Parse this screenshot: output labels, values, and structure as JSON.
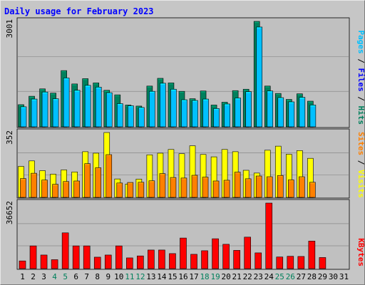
{
  "title": "Daily usage for February 2023",
  "colors": {
    "hits": "#00805c",
    "files": "#00c0ff",
    "pages": "#00e0ff",
    "visits": "#ffff00",
    "sites": "#ff8000",
    "kbytes": "#ff0000",
    "title": "#0000ff",
    "panel": "#c0c0c0",
    "weekend": "#00805c"
  },
  "chart_data": [
    {
      "type": "bar",
      "name": "top",
      "categories": [
        "1",
        "2",
        "3",
        "4",
        "5",
        "6",
        "7",
        "8",
        "9",
        "10",
        "11",
        "12",
        "13",
        "14",
        "15",
        "16",
        "17",
        "18",
        "19",
        "20",
        "21",
        "22",
        "23",
        "24",
        "25",
        "26",
        "27",
        "28",
        "29",
        "30",
        "31"
      ],
      "ymax_label": "3001",
      "ymax": 3001,
      "legend": [
        "Hits",
        "Files",
        "Pages"
      ],
      "legend_colors": [
        "#00805c",
        "#0000ff",
        "#00c0ff"
      ],
      "series": [
        {
          "name": "Hits",
          "values": [
            630,
            870,
            1080,
            960,
            1600,
            1220,
            1370,
            1250,
            1040,
            910,
            620,
            590,
            1160,
            1380,
            1250,
            1010,
            800,
            1020,
            620,
            700,
            1030,
            1070,
            3001,
            1160,
            950,
            780,
            940,
            730,
            0,
            0,
            0
          ]
        },
        {
          "name": "Files",
          "values": [
            570,
            790,
            990,
            800,
            1390,
            1040,
            1180,
            1130,
            970,
            660,
            600,
            550,
            1010,
            1240,
            1070,
            770,
            750,
            790,
            520,
            650,
            820,
            1000,
            2840,
            1020,
            830,
            710,
            840,
            620,
            0,
            0,
            0
          ]
        },
        {
          "name": "Pages",
          "values": [
            570,
            790,
            990,
            800,
            1390,
            1040,
            1180,
            1130,
            970,
            660,
            600,
            550,
            1010,
            1240,
            1070,
            770,
            750,
            790,
            520,
            650,
            820,
            1000,
            2840,
            1020,
            830,
            710,
            840,
            620,
            0,
            0,
            0
          ]
        }
      ]
    },
    {
      "type": "bar",
      "name": "middle",
      "categories": [
        "1",
        "2",
        "3",
        "4",
        "5",
        "6",
        "7",
        "8",
        "9",
        "10",
        "11",
        "12",
        "13",
        "14",
        "15",
        "16",
        "17",
        "18",
        "19",
        "20",
        "21",
        "22",
        "23",
        "24",
        "25",
        "26",
        "27",
        "28",
        "29",
        "30",
        "31"
      ],
      "ymax_label": "352",
      "ymax": 352,
      "legend": [
        "Visits",
        "Sites"
      ],
      "legend_colors": [
        "#ffff00",
        "#ff8000"
      ],
      "series": [
        {
          "name": "Visits",
          "values": [
            168,
            198,
            145,
            126,
            149,
            138,
            248,
            240,
            352,
            100,
            72,
            99,
            231,
            240,
            260,
            237,
            280,
            233,
            220,
            260,
            248,
            147,
            132,
            256,
            278,
            234,
            254,
            212,
            0,
            0,
            0
          ]
        },
        {
          "name": "Sites",
          "values": [
            102,
            131,
            94,
            71,
            86,
            89,
            183,
            161,
            232,
            78,
            81,
            82,
            90,
            129,
            108,
            105,
            120,
            110,
            89,
            93,
            137,
            101,
            116,
            112,
            119,
            95,
            112,
            82,
            0,
            0,
            0
          ]
        }
      ]
    },
    {
      "type": "bar",
      "name": "bottom",
      "categories": [
        "1",
        "2",
        "3",
        "4",
        "5",
        "6",
        "7",
        "8",
        "9",
        "10",
        "11",
        "12",
        "13",
        "14",
        "15",
        "16",
        "17",
        "18",
        "19",
        "20",
        "21",
        "22",
        "23",
        "24",
        "25",
        "26",
        "27",
        "28",
        "29",
        "30",
        "31"
      ],
      "ymax_label": "36652",
      "ymax": 36652,
      "legend": [
        "KBytes"
      ],
      "legend_colors": [
        "#ff0000"
      ],
      "series": [
        {
          "name": "KBytes",
          "values": [
            4300,
            12700,
            7600,
            5000,
            20000,
            12700,
            12700,
            6400,
            7600,
            12700,
            6000,
            7100,
            10400,
            10400,
            8400,
            17100,
            8000,
            10000,
            16700,
            13600,
            10200,
            17600,
            8800,
            36652,
            6500,
            6900,
            6800,
            15400,
            6200,
            0,
            0
          ]
        }
      ]
    }
  ],
  "x_labels": [
    "1",
    "2",
    "3",
    "4",
    "5",
    "6",
    "7",
    "8",
    "9",
    "10",
    "11",
    "12",
    "13",
    "14",
    "15",
    "16",
    "17",
    "18",
    "19",
    "20",
    "21",
    "22",
    "23",
    "24",
    "25",
    "26",
    "27",
    "28",
    "29",
    "30",
    "31"
  ],
  "weekend_days": [
    4,
    5,
    11,
    12,
    18,
    19,
    25,
    26
  ]
}
